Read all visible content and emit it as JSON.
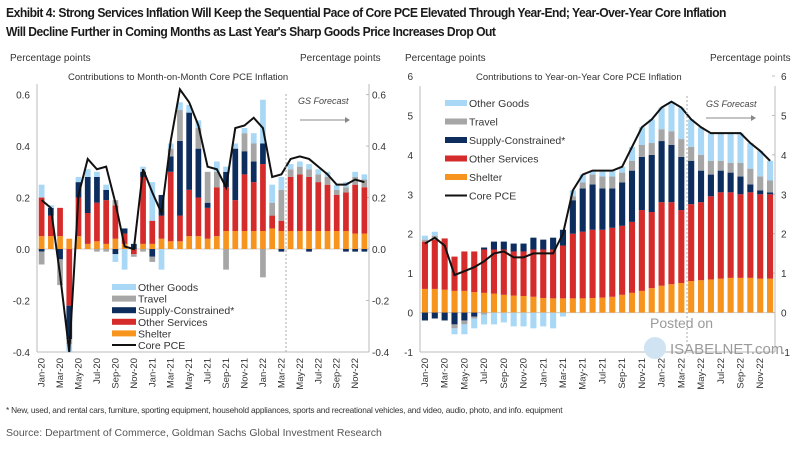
{
  "title_line1": "Exhibit 4: Strong Services Inflation Will Keep the Sequential Pace of Core PCE Elevated Through Year-End; Year-Over-Year Core Inflation",
  "title_line2": "Will Decline Further in Coming Months as Last Year's Sharp Goods Price Increases Drop Out",
  "footnote": "* New, used, and rental cars, furniture, sporting equipment, household appliances, sports and recreational vehicles, and video, audio, photo, and info. equipment",
  "source": "Source: Department of Commerce, Goldman Sachs Global Investment Research",
  "watermark": {
    "line1": "Posted on",
    "line2": "ISABELNET.com"
  },
  "colors": {
    "shelter": "#f7941d",
    "other_services": "#d62b2b",
    "supply": "#0d2d5e",
    "travel": "#a6a6a6",
    "other_goods": "#a8d8f5",
    "core": "#111111"
  },
  "chart_data": [
    {
      "type": "bar",
      "stacked": true,
      "title": "Contributions to Month-on-Month  Core PCE Inflation",
      "ylabel_left": "Percentage points",
      "ylabel_right": "Percentage points",
      "ylim": [
        -0.4,
        0.68
      ],
      "yticks": [
        "0.6",
        "0.4",
        "0.2",
        "0.0",
        "-0.2",
        "-0.4"
      ],
      "ytick_values": [
        0.6,
        0.4,
        0.2,
        0.0,
        -0.2,
        -0.4
      ],
      "forecast_label": "GS Forecast",
      "forecast_start": "Apr-22",
      "legend_position": "bottom-left",
      "categories": [
        "Jan-20",
        "Feb-20",
        "Mar-20",
        "Apr-20",
        "May-20",
        "Jun-20",
        "Jul-20",
        "Aug-20",
        "Sep-20",
        "Oct-20",
        "Nov-20",
        "Dec-20",
        "Jan-21",
        "Feb-21",
        "Mar-21",
        "Apr-21",
        "May-21",
        "Jun-21",
        "Jul-21",
        "Aug-21",
        "Sep-21",
        "Oct-21",
        "Nov-21",
        "Dec-21",
        "Jan-22",
        "Feb-22",
        "Mar-22",
        "Apr-22",
        "May-22",
        "Jun-22",
        "Jul-22",
        "Aug-22",
        "Sep-22",
        "Oct-22",
        "Nov-22",
        "Dec-22"
      ],
      "tick_labels": [
        "Jan-20",
        "Mar-20",
        "May-20",
        "Jul-20",
        "Sep-20",
        "Nov-20",
        "Jan-21",
        "Mar-21",
        "May-21",
        "Jul-21",
        "Sep-21",
        "Nov-21",
        "Jan-22",
        "Mar-22",
        "May-22",
        "Jul-22",
        "Sep-22",
        "Nov-22"
      ],
      "series": [
        {
          "name": "Other Goods",
          "key": "other_goods",
          "values": [
            0.05,
            0.01,
            0,
            -0.03,
            0.02,
            0.03,
            0.02,
            0.02,
            -0.03,
            -0.08,
            0,
            0.02,
            0.15,
            -0.08,
            0.02,
            0.03,
            0.03,
            0.03,
            0,
            0.04,
            0.02,
            0.02,
            0.02,
            0.04,
            0.17,
            0.07,
            0.05,
            0.02,
            0.02,
            0.02,
            0.02,
            0.02,
            0.02,
            0.02,
            0.02,
            0.02
          ]
        },
        {
          "name": "Travel",
          "key": "travel",
          "values": [
            -0.05,
            0,
            -0.1,
            -0.02,
            0,
            0,
            -0.01,
            -0.01,
            0.02,
            0,
            -0.01,
            -0.01,
            -0.02,
            0,
            0.03,
            0.12,
            0,
            0.08,
            0.12,
            0.06,
            -0.08,
            0,
            0.07,
            0.07,
            -0.11,
            0.05,
            0.12,
            0.03,
            0.03,
            0.03,
            0.03,
            0.03,
            0.02,
            0.02,
            0.03,
            0.03
          ]
        },
        {
          "name": "Supply-Constrained*",
          "key": "supply",
          "values": [
            -0.01,
            0.03,
            -0.04,
            -0.13,
            0.06,
            0.14,
            0.1,
            0.04,
            -0.02,
            0.02,
            0.02,
            0.02,
            -0.03,
            0.08,
            0.06,
            0.29,
            0.3,
            0.19,
            0.02,
            0,
            0.06,
            0.2,
            0.09,
            0.08,
            0.08,
            0,
            -0.01,
            0,
            0,
            -0.01,
            0,
            0,
            0,
            -0.01,
            -0.01,
            -0.01
          ]
        },
        {
          "name": "Other Services",
          "key": "other_services",
          "values": [
            0.15,
            0.08,
            0.11,
            -0.22,
            0.15,
            0.12,
            0.15,
            0.17,
            0.13,
            0.04,
            -0.02,
            0.26,
            0.09,
            0.09,
            0.27,
            0.1,
            0.18,
            0.15,
            0.12,
            0.19,
            0.17,
            0.12,
            0.22,
            0.19,
            0.26,
            0.05,
            0.04,
            0.21,
            0.22,
            0.21,
            0.19,
            0.18,
            0.14,
            0.15,
            0.19,
            0.18
          ]
        },
        {
          "name": "Shelter",
          "key": "shelter",
          "values": [
            0.05,
            0.05,
            0.05,
            0.04,
            0.05,
            0.02,
            0.03,
            0.02,
            0.04,
            0.02,
            0,
            0.02,
            0.02,
            0.04,
            0.03,
            0.03,
            0.05,
            0.05,
            0.04,
            0.05,
            0.07,
            0.07,
            0.07,
            0.07,
            0.07,
            0.08,
            0.07,
            0.07,
            0.07,
            0.07,
            0.07,
            0.07,
            0.07,
            0.07,
            0.06,
            0.06
          ]
        },
        {
          "name": "Core PCE",
          "key": "core",
          "type": "line",
          "values": [
            0.19,
            0.16,
            -0.1,
            -0.4,
            0.21,
            0.35,
            0.31,
            0.32,
            0.18,
            0.01,
            0,
            0.31,
            0.22,
            0.14,
            0.42,
            0.62,
            0.57,
            0.48,
            0.32,
            0.31,
            0.24,
            0.47,
            0.48,
            0.51,
            0.47,
            0.28,
            0.29,
            0.35,
            0.36,
            0.35,
            0.32,
            0.29,
            0.25,
            0.25,
            0.27,
            0.26
          ]
        }
      ]
    },
    {
      "type": "bar",
      "stacked": true,
      "title": "Contributions to Year-on-Year  Core PCE Inflation",
      "ylabel_left": "Percentage points",
      "ylabel_right": "Percentage points",
      "ylim": [
        -1,
        6
      ],
      "yticks": [
        "6",
        "5",
        "4",
        "3",
        "2",
        "1",
        "0",
        "-1"
      ],
      "ytick_values": [
        6,
        5,
        4,
        3,
        2,
        1,
        0,
        -1
      ],
      "forecast_label": "GS Forecast",
      "forecast_start": "Apr-22",
      "legend_position": "top-left",
      "categories": [
        "Jan-20",
        "Feb-20",
        "Mar-20",
        "Apr-20",
        "May-20",
        "Jun-20",
        "Jul-20",
        "Aug-20",
        "Sep-20",
        "Oct-20",
        "Nov-20",
        "Dec-20",
        "Jan-21",
        "Feb-21",
        "Mar-21",
        "Apr-21",
        "May-21",
        "Jun-21",
        "Jul-21",
        "Aug-21",
        "Sep-21",
        "Oct-21",
        "Nov-21",
        "Dec-21",
        "Jan-22",
        "Feb-22",
        "Mar-22",
        "Apr-22",
        "May-22",
        "Jun-22",
        "Jul-22",
        "Aug-22",
        "Sep-22",
        "Oct-22",
        "Nov-22",
        "Dec-22"
      ],
      "tick_labels": [
        "Jan-20",
        "Mar-20",
        "May-20",
        "Jul-20",
        "Sep-20",
        "Nov-20",
        "Jan-21",
        "Mar-21",
        "May-21",
        "Jul-21",
        "Sep-21",
        "Nov-21",
        "Jan-22",
        "Mar-22",
        "May-22",
        "Jul-22",
        "Sep-22",
        "Nov-22"
      ],
      "series": [
        {
          "name": "Other Goods",
          "key": "other_goods",
          "values": [
            0.1,
            0.1,
            0,
            -0.15,
            -0.25,
            -0.25,
            -0.25,
            -0.3,
            -0.25,
            -0.35,
            -0.35,
            -0.4,
            -0.35,
            -0.4,
            -0.1,
            0.15,
            0.2,
            0.1,
            0.15,
            0.15,
            0.15,
            0.35,
            0.45,
            0.6,
            0.55,
            0.75,
            0.8,
            0.7,
            0.7,
            0.7,
            0.7,
            0.75,
            0.75,
            0.65,
            0.65,
            0.5
          ]
        },
        {
          "name": "Travel",
          "key": "travel",
          "values": [
            0.05,
            0.1,
            0,
            -0.1,
            -0.1,
            -0.05,
            -0.05,
            0,
            0,
            0,
            0,
            0,
            0,
            0,
            0,
            0.1,
            0.15,
            0.25,
            0.3,
            0.3,
            0.25,
            0.25,
            0.3,
            0.3,
            0.3,
            0.35,
            0.45,
            0.35,
            0.4,
            0.35,
            0.25,
            0.25,
            0.35,
            0.4,
            0.35,
            0.3
          ]
        },
        {
          "name": "Supply-Constrained*",
          "key": "supply",
          "values": [
            -0.2,
            -0.15,
            -0.2,
            -0.3,
            -0.2,
            -0.1,
            0.05,
            0.2,
            0.2,
            0.2,
            0.2,
            0.3,
            0.25,
            0.3,
            0.4,
            0.85,
            1.1,
            1.15,
            1.05,
            1.0,
            1.1,
            1.3,
            1.35,
            1.45,
            1.55,
            1.45,
            1.35,
            1.1,
            0.8,
            0.55,
            0.55,
            0.5,
            0.45,
            0.2,
            0.1,
            0.05
          ]
        },
        {
          "name": "Other Services",
          "key": "other_services",
          "values": [
            1.2,
            1.25,
            1.3,
            0.87,
            1.0,
            1.03,
            1.1,
            1.12,
            1.15,
            1.12,
            1.13,
            1.2,
            1.23,
            1.24,
            1.34,
            1.64,
            1.69,
            1.73,
            1.72,
            1.75,
            1.75,
            1.8,
            2.05,
            1.93,
            2.12,
            2.08,
            1.85,
            1.95,
            1.98,
            2.11,
            2.19,
            2.17,
            2.12,
            2.17,
            2.14,
            2.14
          ]
        },
        {
          "name": "Shelter",
          "key": "shelter",
          "values": [
            0.6,
            0.6,
            0.58,
            0.55,
            0.55,
            0.52,
            0.5,
            0.48,
            0.45,
            0.43,
            0.42,
            0.4,
            0.37,
            0.36,
            0.36,
            0.36,
            0.36,
            0.37,
            0.38,
            0.4,
            0.45,
            0.5,
            0.55,
            0.62,
            0.68,
            0.72,
            0.75,
            0.8,
            0.82,
            0.84,
            0.86,
            0.88,
            0.88,
            0.88,
            0.86,
            0.86
          ]
        },
        {
          "name": "Core PCE",
          "key": "core",
          "type": "line",
          "values": [
            1.75,
            1.9,
            1.7,
            0.95,
            1.05,
            1.15,
            1.3,
            1.5,
            1.55,
            1.4,
            1.4,
            1.5,
            1.5,
            1.5,
            2.0,
            3.1,
            3.5,
            3.6,
            3.6,
            3.6,
            3.7,
            4.2,
            4.7,
            4.9,
            5.2,
            5.35,
            5.2,
            4.9,
            4.7,
            4.55,
            4.55,
            4.55,
            4.55,
            4.3,
            4.1,
            3.85
          ]
        }
      ]
    }
  ]
}
